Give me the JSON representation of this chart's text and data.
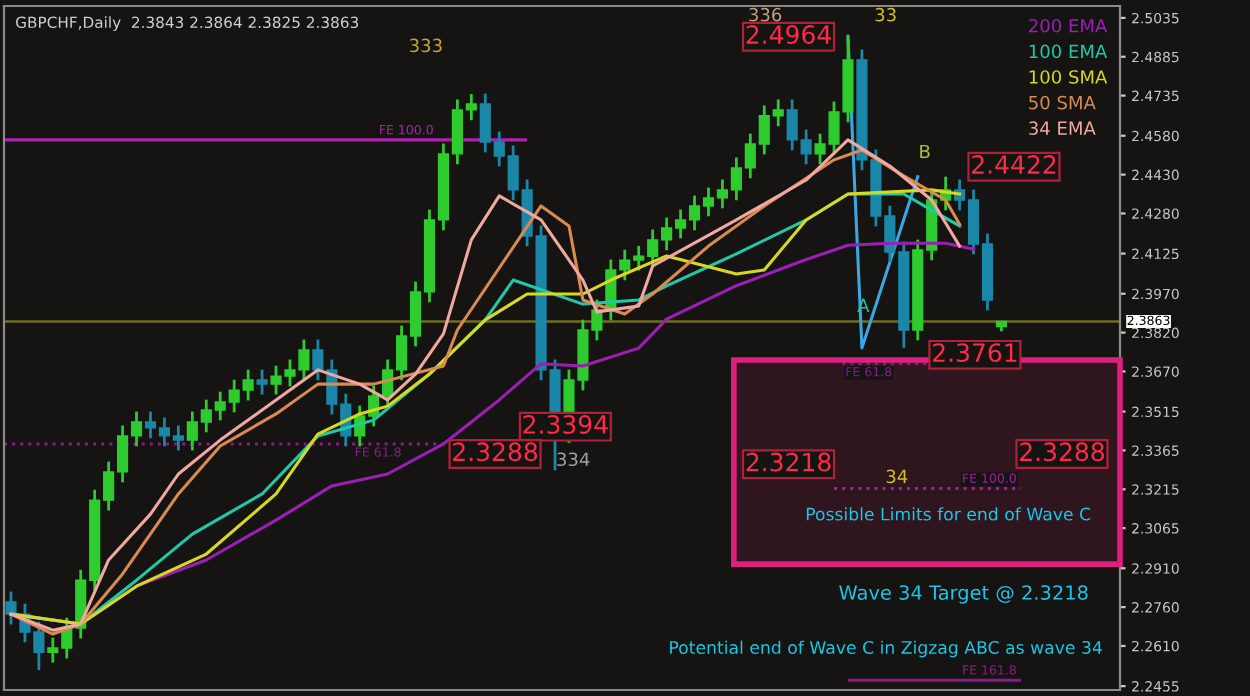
{
  "chart_data": {
    "type": "candlestick",
    "title": "GBPCHF,Daily  2.3843 2.3864 2.3825 2.3863",
    "categories": [
      null,
      null,
      null,
      null,
      null,
      null,
      null,
      null,
      null,
      null,
      null,
      null,
      null,
      null,
      null,
      null,
      null,
      null,
      null,
      null,
      null,
      null,
      null,
      null,
      null,
      null,
      null,
      null,
      null,
      null,
      null,
      null,
      null,
      null,
      null,
      null,
      null,
      null,
      null,
      null,
      null,
      null,
      null,
      null,
      null,
      null,
      null,
      null,
      null,
      null,
      null,
      null,
      null,
      null,
      null,
      null,
      null,
      null,
      null,
      null,
      null,
      null,
      null,
      null,
      null,
      null,
      null,
      null,
      null,
      null,
      null,
      null,
      null,
      null,
      null,
      null,
      null,
      null,
      null,
      null
    ],
    "ohlc": [
      [
        2.278,
        2.282,
        2.2693,
        2.2733
      ],
      [
        2.2733,
        2.2773,
        2.2624,
        2.2664
      ],
      [
        2.2664,
        2.2704,
        2.2517,
        2.2586
      ],
      [
        2.2586,
        2.2642,
        2.2546,
        2.2602
      ],
      [
        2.2602,
        2.2719,
        2.2562,
        2.2679
      ],
      [
        2.2679,
        2.2904,
        2.2639,
        2.2864
      ],
      [
        2.2864,
        2.3213,
        2.2824,
        2.3173
      ],
      [
        2.3173,
        2.3322,
        2.3133,
        2.3282
      ],
      [
        2.3282,
        2.3461,
        2.3242,
        2.3421
      ],
      [
        2.3421,
        2.3515,
        2.3381,
        2.3475
      ],
      [
        2.3475,
        2.3515,
        2.3412,
        2.3452
      ],
      [
        2.3452,
        2.3492,
        2.3381,
        2.3421
      ],
      [
        2.3421,
        2.3461,
        2.3365,
        2.3405
      ],
      [
        2.3405,
        2.3515,
        2.3365,
        2.3475
      ],
      [
        2.3475,
        2.3561,
        2.3435,
        2.3521
      ],
      [
        2.3521,
        2.3592,
        2.3481,
        2.3552
      ],
      [
        2.3552,
        2.3638,
        2.3512,
        2.3598
      ],
      [
        2.3598,
        2.3677,
        2.3558,
        2.3637
      ],
      [
        2.3637,
        2.3677,
        2.3581,
        2.3621
      ],
      [
        2.3621,
        2.3692,
        2.3581,
        2.3652
      ],
      [
        2.3652,
        2.3716,
        2.3612,
        2.3676
      ],
      [
        2.3676,
        2.3793,
        2.3636,
        2.3753
      ],
      [
        2.3753,
        2.3793,
        2.3636,
        2.3676
      ],
      [
        2.3676,
        2.3716,
        2.3504,
        2.3544
      ],
      [
        2.3544,
        2.3584,
        2.3381,
        2.3421
      ],
      [
        2.3421,
        2.3538,
        2.3381,
        2.3498
      ],
      [
        2.3498,
        2.3615,
        2.3458,
        2.3575
      ],
      [
        2.3575,
        2.3716,
        2.3535,
        2.3676
      ],
      [
        2.3676,
        2.3847,
        2.3636,
        2.3807
      ],
      [
        2.3807,
        2.4017,
        2.3767,
        2.3977
      ],
      [
        2.3977,
        2.4295,
        2.3937,
        2.4255
      ],
      [
        2.4255,
        2.455,
        2.4215,
        2.451
      ],
      [
        2.451,
        2.472,
        2.447,
        2.468
      ],
      [
        2.468,
        2.4741,
        2.464,
        2.4703
      ],
      [
        2.4703,
        2.4743,
        2.4516,
        2.4556
      ],
      [
        2.4556,
        2.4596,
        2.4462,
        2.4502
      ],
      [
        2.4502,
        2.4542,
        2.4331,
        2.4371
      ],
      [
        2.4371,
        2.4411,
        2.4153,
        2.4193
      ],
      [
        2.4193,
        2.4233,
        2.3636,
        2.3676
      ],
      [
        2.3676,
        2.3716,
        2.3288,
        2.3405
      ],
      [
        2.3405,
        2.3677,
        2.3394,
        2.3637
      ],
      [
        2.3637,
        2.387,
        2.3597,
        2.383
      ],
      [
        2.383,
        2.3947,
        2.379,
        2.3907
      ],
      [
        2.3907,
        2.4102,
        2.3867,
        2.4062
      ],
      [
        2.4062,
        2.414,
        2.4022,
        2.41
      ],
      [
        2.41,
        2.4155,
        2.406,
        2.4115
      ],
      [
        2.4115,
        2.4218,
        2.4075,
        2.4178
      ],
      [
        2.4178,
        2.4264,
        2.4138,
        2.4224
      ],
      [
        2.4224,
        2.4295,
        2.4184,
        2.4255
      ],
      [
        2.4255,
        2.4349,
        2.4215,
        2.4309
      ],
      [
        2.4309,
        2.438,
        2.4269,
        2.434
      ],
      [
        2.434,
        2.4411,
        2.43,
        2.4371
      ],
      [
        2.4371,
        2.4496,
        2.4331,
        2.4456
      ],
      [
        2.4456,
        2.4588,
        2.4416,
        2.4548
      ],
      [
        2.4548,
        2.4697,
        2.4508,
        2.4657
      ],
      [
        2.4657,
        2.472,
        2.4617,
        2.468
      ],
      [
        2.468,
        2.472,
        2.4524,
        2.4564
      ],
      [
        2.4564,
        2.4604,
        2.447,
        2.451
      ],
      [
        2.451,
        2.4588,
        2.447,
        2.4548
      ],
      [
        2.4548,
        2.4712,
        2.4508,
        2.4672
      ],
      [
        2.4672,
        2.4964,
        2.4632,
        2.4873
      ],
      [
        2.4873,
        2.4913,
        2.4447,
        2.4487
      ],
      [
        2.4487,
        2.4527,
        2.423,
        2.427
      ],
      [
        2.427,
        2.431,
        2.4091,
        2.4131
      ],
      [
        2.4131,
        2.4171,
        2.3761,
        2.383
      ],
      [
        2.383,
        2.4179,
        2.379,
        2.4139
      ],
      [
        2.4139,
        2.4372,
        2.4099,
        2.4332
      ],
      [
        2.4332,
        2.4422,
        2.4292,
        2.4371
      ],
      [
        2.4371,
        2.4411,
        2.4292,
        2.4332
      ],
      [
        2.4332,
        2.4372,
        2.4122,
        2.4162
      ],
      [
        2.4162,
        2.4202,
        2.3906,
        2.3946
      ],
      [
        2.3843,
        2.3864,
        2.3825,
        2.3863
      ],
      null,
      null,
      null,
      null,
      null,
      null,
      null,
      null
    ],
    "colors": [
      "#1b87a8",
      "#1b87a8",
      "#1b87a8",
      "#2ecc2e",
      "#2ecc2e",
      "#2ecc2e",
      "#2ecc2e",
      "#2ecc2e",
      "#2ecc2e",
      "#2ecc2e",
      "#1b87a8",
      "#1b87a8",
      "#1b87a8",
      "#2ecc2e",
      "#2ecc2e",
      "#2ecc2e",
      "#2ecc2e",
      "#2ecc2e",
      "#1b87a8",
      "#2ecc2e",
      "#2ecc2e",
      "#2ecc2e",
      "#1b87a8",
      "#1b87a8",
      "#1b87a8",
      "#2ecc2e",
      "#2ecc2e",
      "#2ecc2e",
      "#2ecc2e",
      "#2ecc2e",
      "#2ecc2e",
      "#2ecc2e",
      "#2ecc2e",
      "#2ecc2e",
      "#1b87a8",
      "#1b87a8",
      "#1b87a8",
      "#1b87a8",
      "#1b87a8",
      "#1b87a8",
      "#2ecc2e",
      "#2ecc2e",
      "#2ecc2e",
      "#2ecc2e",
      "#2ecc2e",
      "#2ecc2e",
      "#2ecc2e",
      "#2ecc2e",
      "#2ecc2e",
      "#2ecc2e",
      "#2ecc2e",
      "#2ecc2e",
      "#2ecc2e",
      "#2ecc2e",
      "#2ecc2e",
      "#2ecc2e",
      "#1b87a8",
      "#1b87a8",
      "#2ecc2e",
      "#2ecc2e",
      "#2ecc2e",
      "#1b87a8",
      "#1b87a8",
      "#1b87a8",
      "#1b87a8",
      "#2ecc2e",
      "#2ecc2e",
      "#2ecc2e",
      "#1b87a8",
      "#1b87a8",
      "#1b87a8",
      "#2ecc2e",
      null,
      null,
      null,
      null,
      null,
      null,
      null,
      null
    ],
    "series": [
      {
        "type": "line",
        "name": "200 EMA",
        "color": "#9b1fb5",
        "values": [
          2.2733,
          null,
          null,
          null,
          null,
          2.2695,
          null,
          null,
          null,
          2.2841,
          null,
          null,
          null,
          null,
          2.2942,
          null,
          null,
          null,
          null,
          2.3096,
          null,
          null,
          null,
          2.3228,
          null,
          null,
          null,
          2.3274,
          null,
          null,
          null,
          2.339,
          null,
          null,
          null,
          2.356,
          null,
          null,
          2.37,
          null,
          null,
          2.3691,
          null,
          null,
          null,
          2.376,
          null,
          2.3872,
          null,
          null,
          null,
          null,
          2.4001,
          null,
          null,
          null,
          null,
          2.4102,
          null,
          null,
          2.4157,
          null,
          null,
          2.4165,
          null,
          null,
          null,
          2.4165,
          null,
          2.4142,
          null,
          null,
          null,
          null,
          null,
          null,
          null,
          null,
          null,
          null
        ]
      },
      {
        "type": "line",
        "name": "100 EMA",
        "color": "#20c8a8",
        "values": [
          2.2733,
          null,
          null,
          null,
          null,
          2.2695,
          null,
          null,
          null,
          2.2864,
          null,
          null,
          null,
          2.3042,
          null,
          null,
          null,
          null,
          2.3197,
          null,
          null,
          null,
          2.3421,
          null,
          null,
          null,
          2.3482,
          null,
          null,
          null,
          2.366,
          null,
          null,
          null,
          2.3869,
          null,
          2.4023,
          null,
          null,
          null,
          null,
          2.393,
          null,
          null,
          null,
          2.3946,
          null,
          2.4,
          null,
          null,
          null,
          null,
          2.4124,
          null,
          null,
          null,
          null,
          2.4255,
          null,
          null,
          2.4355,
          null,
          null,
          null,
          2.4355,
          null,
          2.4293,
          null,
          2.4232,
          null,
          null,
          null,
          null,
          null,
          null,
          null,
          null,
          null,
          null,
          null
        ]
      },
      {
        "type": "line",
        "name": "100 SMA",
        "color": "#d8d820",
        "values": [
          2.2733,
          null,
          null,
          null,
          null,
          2.2695,
          null,
          null,
          null,
          2.2841,
          null,
          null,
          null,
          null,
          2.2965,
          null,
          null,
          null,
          null,
          2.3197,
          null,
          null,
          2.3428,
          null,
          null,
          2.3506,
          null,
          2.3536,
          null,
          null,
          2.366,
          null,
          null,
          null,
          2.3869,
          null,
          null,
          2.3969,
          null,
          null,
          null,
          2.3969,
          null,
          2.4023,
          null,
          null,
          null,
          2.4116,
          null,
          null,
          null,
          null,
          2.4046,
          null,
          2.4062,
          null,
          null,
          2.4255,
          null,
          null,
          2.4355,
          null,
          null,
          null,
          null,
          null,
          2.4371,
          null,
          2.4355,
          null,
          null,
          null,
          null,
          null,
          null,
          null,
          null,
          null,
          null,
          null
        ]
      },
      {
        "type": "line",
        "name": "50 SMA",
        "color": "#d88a50",
        "values": [
          2.2733,
          null,
          null,
          2.2656,
          null,
          2.2695,
          null,
          null,
          2.2888,
          null,
          null,
          null,
          2.3197,
          null,
          null,
          2.3382,
          null,
          null,
          null,
          2.3506,
          null,
          null,
          2.3621,
          null,
          null,
          null,
          2.3621,
          null,
          null,
          null,
          null,
          2.3691,
          2.383,
          null,
          null,
          null,
          null,
          null,
          2.4309,
          null,
          2.4232,
          2.3946,
          null,
          null,
          2.3892,
          null,
          2.3969,
          null,
          null,
          null,
          2.4154,
          null,
          null,
          null,
          2.4309,
          null,
          null,
          null,
          null,
          2.4487,
          null,
          2.4525,
          null,
          null,
          2.4425,
          null,
          null,
          2.4332,
          2.4239,
          null,
          null,
          null,
          null,
          null,
          null,
          null,
          null,
          null,
          null,
          null
        ]
      },
      {
        "type": "line",
        "name": "34 EMA",
        "color": "#f0a8a0",
        "values": [
          2.2733,
          null,
          null,
          2.2671,
          null,
          2.2695,
          null,
          2.2942,
          null,
          null,
          2.3119,
          null,
          2.3274,
          null,
          null,
          2.3405,
          null,
          null,
          null,
          2.356,
          null,
          null,
          2.3676,
          null,
          null,
          2.3621,
          null,
          2.356,
          null,
          2.366,
          null,
          2.3815,
          null,
          2.4178,
          null,
          2.4348,
          null,
          null,
          2.4255,
          null,
          null,
          2.4023,
          2.39,
          null,
          null,
          2.3923,
          2.4077,
          null,
          null,
          null,
          null,
          null,
          2.4255,
          null,
          null,
          null,
          null,
          2.4409,
          null,
          null,
          2.4564,
          null,
          null,
          2.4463,
          null,
          null,
          2.4332,
          null,
          2.4154,
          null,
          null,
          null,
          null,
          null,
          null,
          null,
          null,
          null,
          null,
          null
        ]
      },
      {
        "type": "line",
        "color": "#3aa8e0",
        "values": [
          null,
          null,
          null,
          null,
          null,
          null,
          null,
          null,
          null,
          null,
          null,
          null,
          null,
          null,
          null,
          null,
          null,
          null,
          null,
          null,
          null,
          null,
          null,
          null,
          null,
          null,
          null,
          null,
          null,
          null,
          null,
          null,
          null,
          null,
          null,
          null,
          null,
          null,
          null,
          null,
          null,
          null,
          null,
          null,
          null,
          null,
          null,
          null,
          null,
          null,
          null,
          null,
          null,
          null,
          null,
          null,
          null,
          null,
          null,
          null,
          2.4964,
          2.3761,
          null,
          null,
          null,
          2.4422,
          null,
          null,
          null,
          null,
          null,
          null,
          null,
          null,
          null,
          null,
          null,
          null,
          null,
          null
        ]
      }
    ],
    "ylim": [
      2.244,
      2.5081
    ],
    "yticks": [
      {
        "value": 2.5035,
        "label": "2.5035"
      },
      {
        "value": 2.4885,
        "label": "2.4885"
      },
      {
        "value": 2.4735,
        "label": "2.4735"
      },
      {
        "value": 2.458,
        "label": "2.4580"
      },
      {
        "value": 2.443,
        "label": "2.4430"
      },
      {
        "value": 2.428,
        "label": "2.4280"
      },
      {
        "value": 2.4125,
        "label": "2.4125"
      },
      {
        "value": 2.397,
        "label": "2.3970"
      },
      {
        "value": 2.382,
        "label": "2.3820"
      },
      {
        "value": 2.367,
        "label": "2.3670"
      },
      {
        "value": 2.3515,
        "label": "2.3515"
      },
      {
        "value": 2.3365,
        "label": "2.3365"
      },
      {
        "value": 2.3215,
        "label": "2.3215"
      },
      {
        "value": 2.3065,
        "label": "2.3065"
      },
      {
        "value": 2.291,
        "label": "2.2910"
      },
      {
        "value": 2.276,
        "label": "2.2760"
      },
      {
        "value": 2.261,
        "label": "2.2610"
      },
      {
        "value": 2.2455,
        "label": "2.2455"
      }
    ],
    "tick_labels": "y",
    "grid": false,
    "legend": "top right",
    "ref_lines": [
      {
        "axis": "y",
        "value": 2.3863,
        "label": "2.3863",
        "color": "#6e6e1e",
        "line_style": "solid"
      },
      {
        "axis": "y",
        "value": 2.4564,
        "label": "FE 100.0",
        "color": "#b020b0",
        "line_style": "solid"
      },
      {
        "axis": "y",
        "value": 2.339,
        "label": "FE 61.8",
        "color": "#8a1a8a",
        "line_style": "dotted"
      },
      {
        "axis": "y",
        "value": 2.37,
        "label": "FE 61.8",
        "color": "#8a1a8a",
        "line_style": "dotted"
      },
      {
        "axis": "y",
        "value": 2.3218,
        "label": "FE 100.0",
        "color": "#a020a0",
        "line_style": "dotted"
      },
      {
        "axis": "y",
        "value": 2.2478,
        "label": "FE 161.8",
        "color": "#8a1a8a",
        "line_style": "solid"
      }
    ],
    "bands": [
      {
        "axis": "y",
        "from": 2.2926,
        "to": 2.3714,
        "color": "#e0207f"
      }
    ],
    "annotations": [
      "333",
      "336",
      "33",
      "334",
      "34",
      "A",
      "B",
      "2.4964",
      "2.4422",
      "2.3761",
      "2.3394",
      "2.3288",
      "2.3218",
      "2.3288",
      "Possible Limits for end of Wave C",
      "Wave 34 Target @ 2.3218",
      "Potential end of Wave C in Zigzag ABC as wave 34"
    ]
  }
}
